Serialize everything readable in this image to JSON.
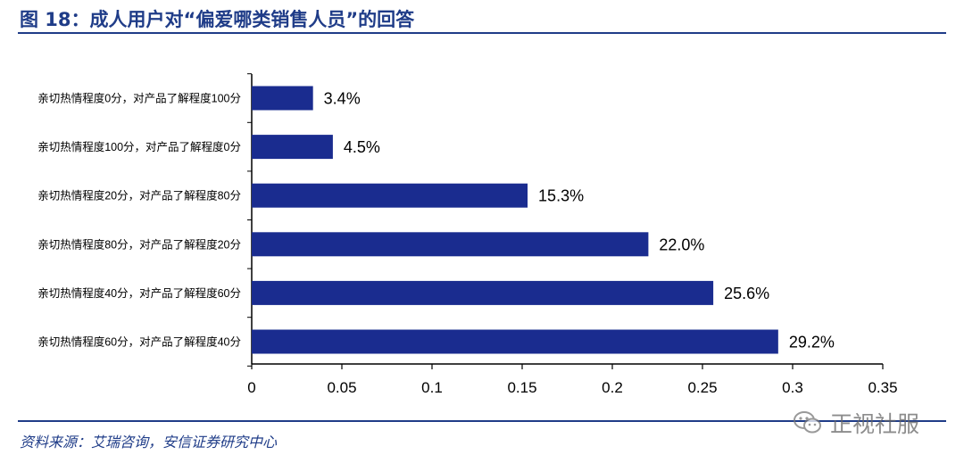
{
  "figure": {
    "title": "图 18：成人用户对“偏爱哪类销售人员”的回答",
    "source": "资料来源：艾瑞咨询，安信证券研究中心",
    "watermark": "正视社服"
  },
  "colors": {
    "bar": "#1a2c8f",
    "title": "#1f3c88",
    "axis": "#000000"
  },
  "chart_data": {
    "type": "bar",
    "orientation": "horizontal",
    "categories": [
      "亲切热情程度0分，对产品了解程度100分",
      "亲切热情程度100分，对产品了解程度0分",
      "亲切热情程度20分，对产品了解程度80分",
      "亲切热情程度80分，对产品了解程度20分",
      "亲切热情程度40分，对产品了解程度60分",
      "亲切热情程度60分，对产品了解程度40分"
    ],
    "values": [
      0.034,
      0.045,
      0.153,
      0.22,
      0.256,
      0.292
    ],
    "data_labels": [
      "3.4%",
      "4.5%",
      "15.3%",
      "22.0%",
      "25.6%",
      "29.2%"
    ],
    "xlim": [
      0,
      0.35
    ],
    "xticks": [
      0,
      0.05,
      0.1,
      0.15,
      0.2,
      0.25,
      0.3,
      0.35
    ],
    "xtick_labels": [
      "0",
      "0.05",
      "0.1",
      "0.15",
      "0.2",
      "0.25",
      "0.3",
      "0.35"
    ],
    "grid": false,
    "legend": "none"
  }
}
